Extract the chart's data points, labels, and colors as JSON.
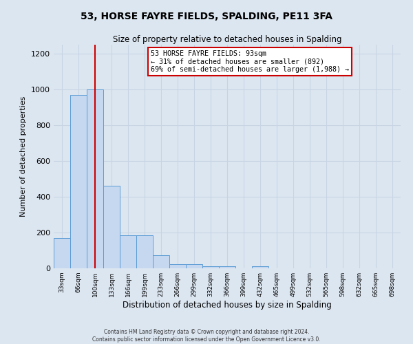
{
  "title": "53, HORSE FAYRE FIELDS, SPALDING, PE11 3FA",
  "subtitle": "Size of property relative to detached houses in Spalding",
  "xlabel": "Distribution of detached houses by size in Spalding",
  "ylabel": "Number of detached properties",
  "footer_line1": "Contains HM Land Registry data © Crown copyright and database right 2024.",
  "footer_line2": "Contains public sector information licensed under the Open Government Licence v3.0.",
  "bin_labels": [
    "33sqm",
    "66sqm",
    "100sqm",
    "133sqm",
    "166sqm",
    "199sqm",
    "233sqm",
    "266sqm",
    "299sqm",
    "332sqm",
    "366sqm",
    "399sqm",
    "432sqm",
    "465sqm",
    "499sqm",
    "532sqm",
    "565sqm",
    "598sqm",
    "632sqm",
    "665sqm",
    "698sqm"
  ],
  "bar_values": [
    170,
    970,
    1000,
    460,
    185,
    185,
    75,
    25,
    25,
    10,
    10,
    0,
    10,
    0,
    0,
    0,
    0,
    0,
    0,
    0,
    0
  ],
  "bar_color": "#c5d8f0",
  "bar_edge_color": "#5b9bd5",
  "annotation_text_line1": "53 HORSE FAYRE FIELDS: 93sqm",
  "annotation_text_line2": "← 31% of detached houses are smaller (892)",
  "annotation_text_line3": "69% of semi-detached houses are larger (1,988) →",
  "annotation_box_color": "#ffffff",
  "annotation_box_edge": "#cc0000",
  "vline_x": 2,
  "vline_color": "#cc0000",
  "ylim": [
    0,
    1250
  ],
  "yticks": [
    0,
    200,
    400,
    600,
    800,
    1000,
    1200
  ],
  "grid_color": "#c8d4e3",
  "background_color": "#dce6f1",
  "plot_bg_color": "#dce6f1"
}
